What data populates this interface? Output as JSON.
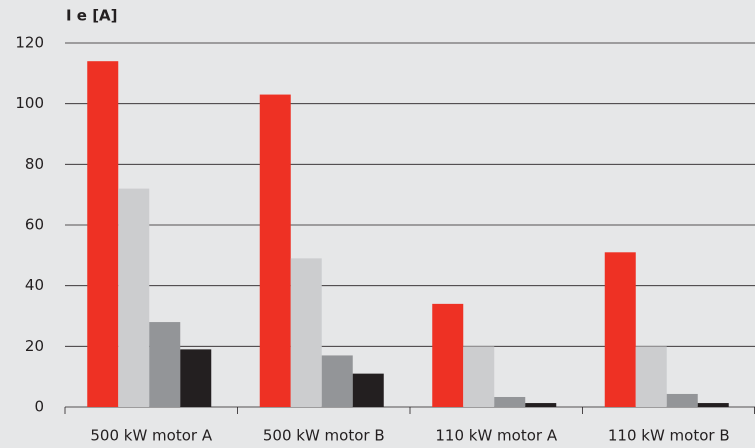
{
  "chart_data": {
    "type": "bar",
    "title": "I e [A]",
    "categories": [
      "500 kW motor A",
      "500 kW motor B",
      "110 kW motor A",
      "110 kW motor B"
    ],
    "series": [
      {
        "color": "#ee3124",
        "values": [
          114,
          103,
          34,
          51
        ]
      },
      {
        "color": "#cccdcf",
        "values": [
          72,
          49,
          20,
          20
        ]
      },
      {
        "color": "#939598",
        "values": [
          28,
          17,
          3.3,
          4.3
        ]
      },
      {
        "color": "#231f20",
        "values": [
          19,
          11,
          1.3,
          1.3
        ]
      }
    ],
    "ylim": [
      0,
      120
    ],
    "yticks": [
      0,
      20,
      40,
      60,
      80,
      100,
      120
    ],
    "grid": true
  }
}
